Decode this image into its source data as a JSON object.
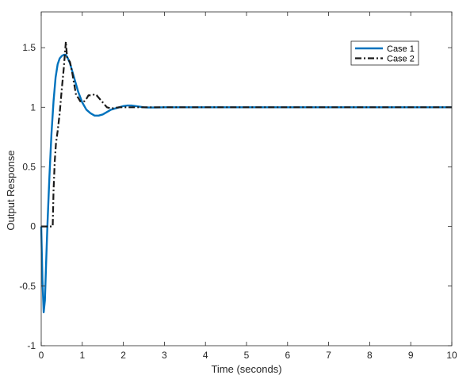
{
  "chart_data": {
    "type": "line",
    "title": "",
    "xlabel": "Time (seconds)",
    "ylabel": "Output Response",
    "xlim": [
      0,
      10
    ],
    "ylim": [
      -1,
      1.8
    ],
    "xticks": [
      0,
      1,
      2,
      3,
      4,
      5,
      6,
      7,
      8,
      9,
      10
    ],
    "yticks": [
      -1,
      -0.5,
      0,
      0.5,
      1,
      1.5
    ],
    "xtick_labels": [
      "0",
      "1",
      "2",
      "3",
      "4",
      "5",
      "6",
      "7",
      "8",
      "9",
      "10"
    ],
    "ytick_labels": [
      "-1",
      "-0.5",
      "0",
      "0.5",
      "1",
      "1.5"
    ],
    "grid": false,
    "legend_position": "top-right",
    "series": [
      {
        "name": "Case 1",
        "color": "#0072BD",
        "style": "solid",
        "x": [
          0,
          0.03,
          0.06,
          0.09,
          0.12,
          0.15,
          0.2,
          0.25,
          0.3,
          0.35,
          0.4,
          0.45,
          0.5,
          0.55,
          0.6,
          0.65,
          0.7,
          0.75,
          0.8,
          0.85,
          0.9,
          1.0,
          1.1,
          1.2,
          1.3,
          1.4,
          1.5,
          1.6,
          1.7,
          1.8,
          1.9,
          2.0,
          2.1,
          2.2,
          2.3,
          2.4,
          2.5,
          2.6,
          2.8,
          3.0,
          3.5,
          4,
          5,
          6,
          7,
          8,
          9,
          10
        ],
        "y": [
          0,
          -0.45,
          -0.72,
          -0.62,
          -0.3,
          0.0,
          0.42,
          0.78,
          1.05,
          1.25,
          1.36,
          1.41,
          1.43,
          1.44,
          1.44,
          1.41,
          1.37,
          1.31,
          1.25,
          1.19,
          1.13,
          1.04,
          0.98,
          0.95,
          0.93,
          0.93,
          0.94,
          0.96,
          0.98,
          0.99,
          1.0,
          1.01,
          1.015,
          1.015,
          1.01,
          1.005,
          1.0,
          0.998,
          0.998,
          1.0,
          1.0,
          1.0,
          1.0,
          1.0,
          1.0,
          1.0,
          1.0,
          1.0
        ]
      },
      {
        "name": "Case 2",
        "color": "#1a1a1a",
        "style": "dashdot",
        "x": [
          0,
          0.28,
          0.3,
          0.33,
          0.36,
          0.4,
          0.45,
          0.5,
          0.55,
          0.6,
          0.63,
          0.66,
          0.7,
          0.75,
          0.8,
          0.85,
          0.9,
          0.95,
          1.0,
          1.05,
          1.1,
          1.15,
          1.2,
          1.25,
          1.3,
          1.35,
          1.4,
          1.45,
          1.5,
          1.55,
          1.6,
          1.7,
          1.8,
          1.9,
          2.0,
          2.2,
          2.5,
          3,
          4,
          5,
          6,
          7,
          8,
          9,
          10
        ],
        "y": [
          0,
          0,
          0.3,
          0.55,
          0.7,
          0.8,
          0.95,
          1.15,
          1.33,
          1.55,
          1.42,
          1.4,
          1.38,
          1.3,
          1.2,
          1.1,
          1.08,
          1.05,
          1.05,
          1.05,
          1.07,
          1.1,
          1.1,
          1.1,
          1.11,
          1.1,
          1.08,
          1.06,
          1.04,
          1.02,
          1.0,
          0.99,
          0.995,
          1.0,
          1.0,
          1.0,
          1.0,
          1.0,
          1.0,
          1.0,
          1.0,
          1.0,
          1.0,
          1.0,
          1.0
        ]
      }
    ]
  }
}
